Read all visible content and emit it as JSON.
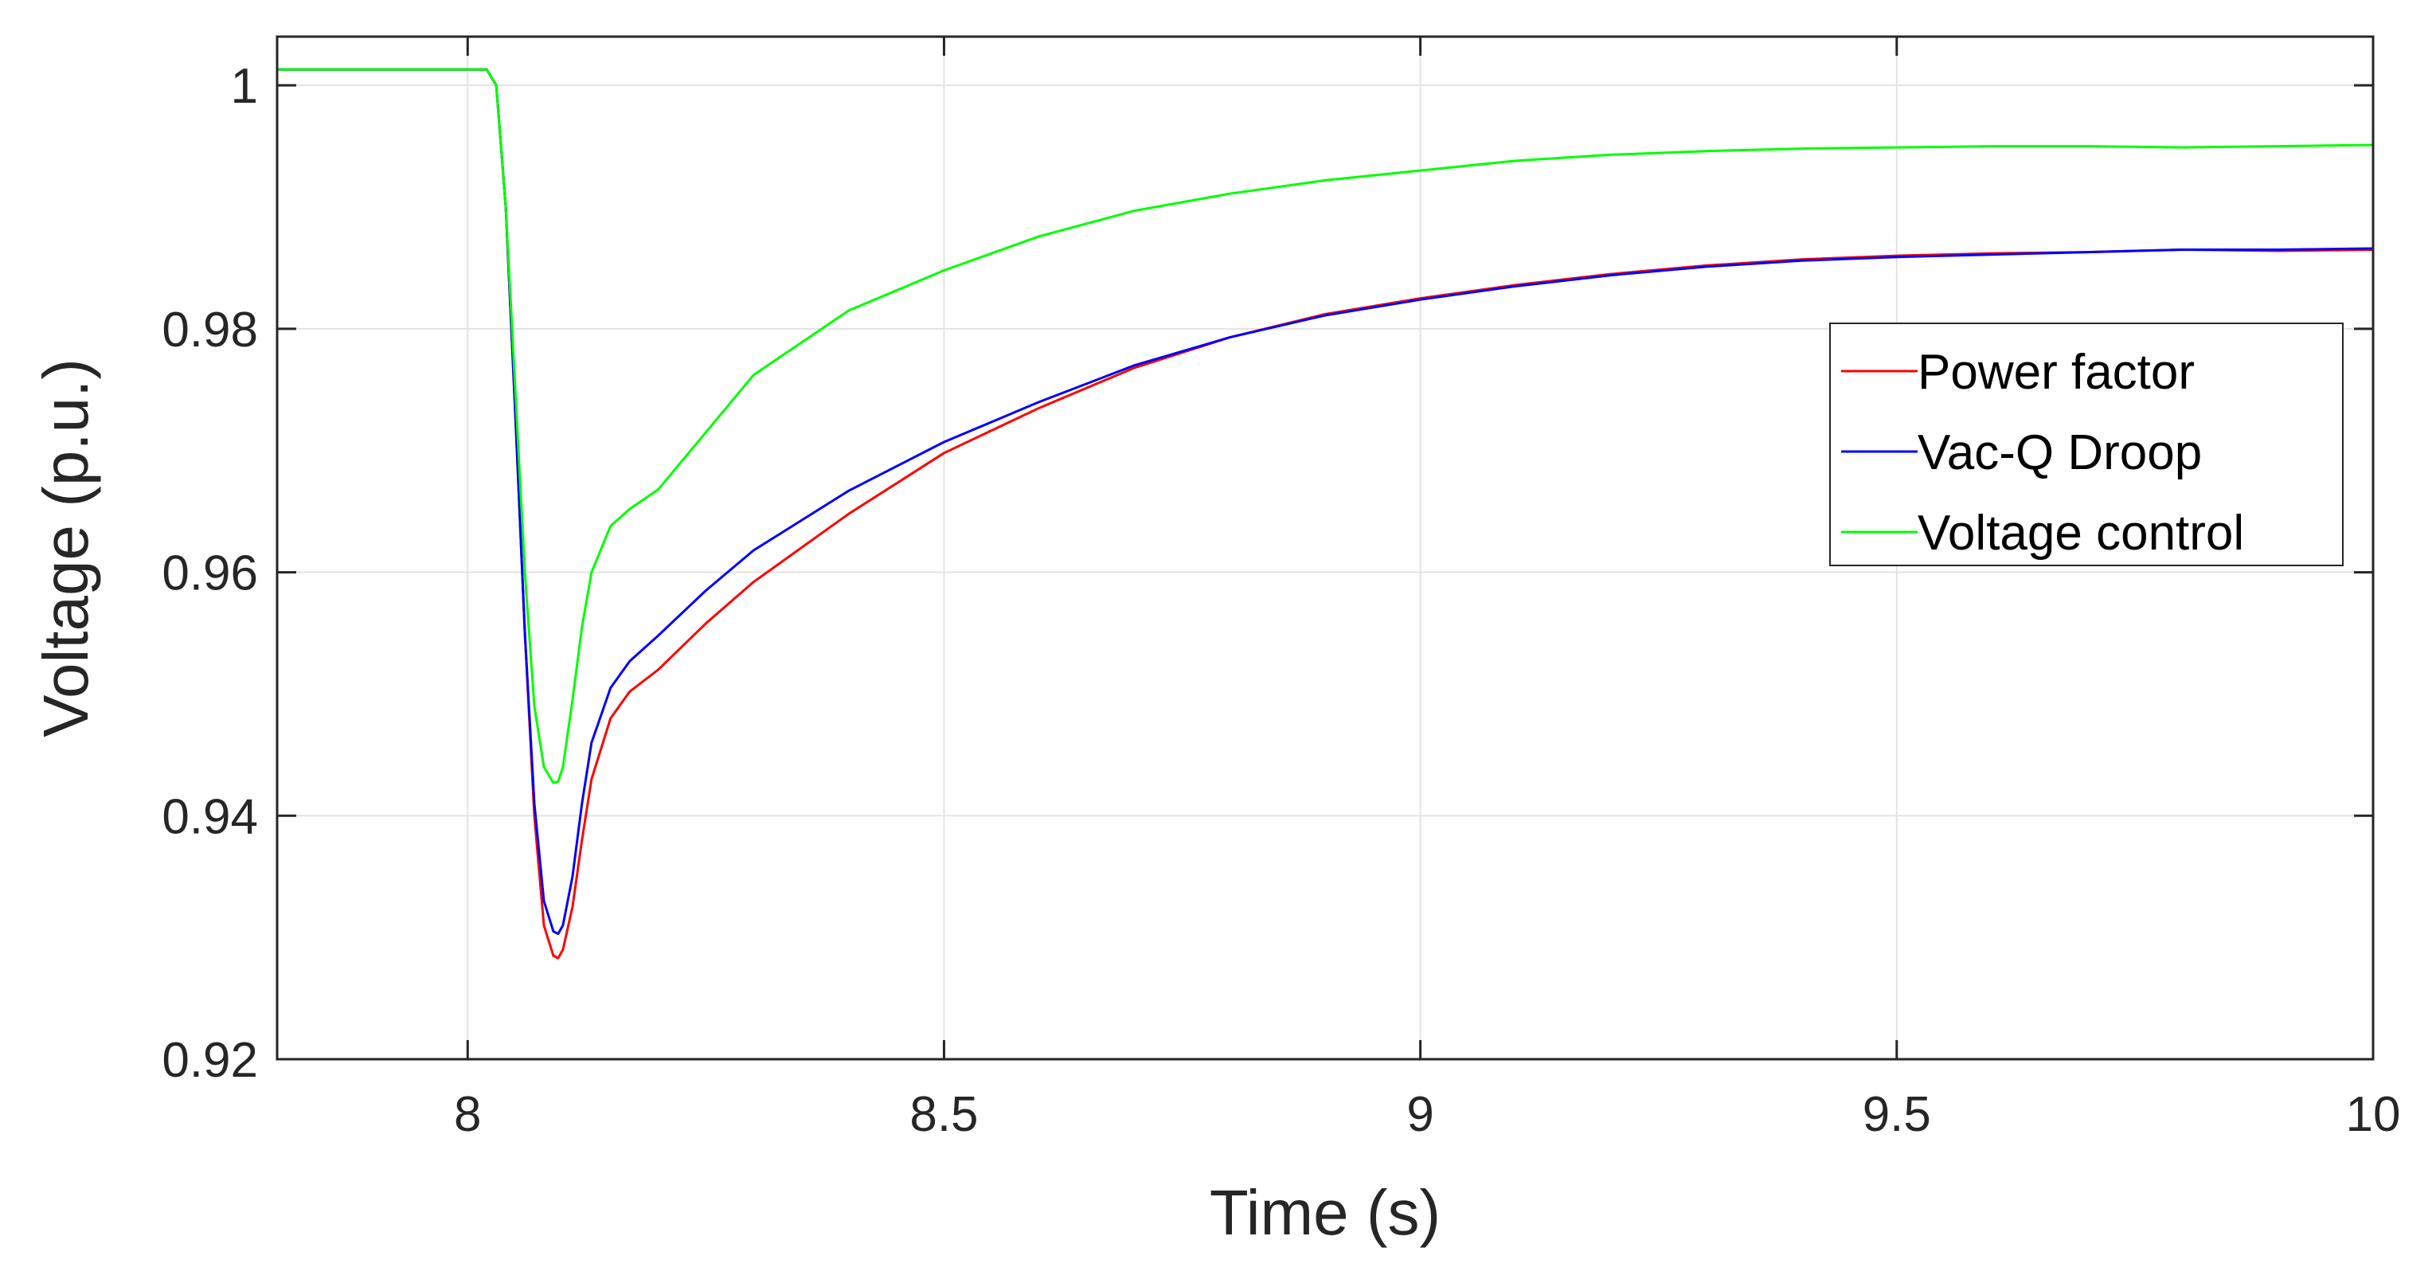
{
  "chart_data": {
    "type": "line",
    "title": "",
    "xlabel": "Time (s)",
    "ylabel": "Voltage (p.u.)",
    "xlim": [
      7.8,
      10
    ],
    "ylim": [
      0.92,
      1.004
    ],
    "xticks": [
      8,
      8.5,
      9,
      9.5,
      10
    ],
    "xtick_labels": [
      "8",
      "8.5",
      "9",
      "9.5",
      "10"
    ],
    "yticks": [
      0.92,
      0.94,
      0.96,
      0.98,
      1
    ],
    "ytick_labels": [
      "0.92",
      "0.94",
      "0.96",
      "0.98",
      "1"
    ],
    "grid": true,
    "legend_position": "right",
    "series": [
      {
        "name": "Power factor",
        "color": "#ff0000",
        "x": [
          7.8,
          8.0,
          8.02,
          8.03,
          8.04,
          8.05,
          8.06,
          8.07,
          8.08,
          8.09,
          8.095,
          8.1,
          8.11,
          8.12,
          8.13,
          8.15,
          8.17,
          8.2,
          8.25,
          8.3,
          8.4,
          8.5,
          8.6,
          8.7,
          8.8,
          8.9,
          9.0,
          9.1,
          9.2,
          9.3,
          9.4,
          9.5,
          9.6,
          9.7,
          9.8,
          9.9,
          10.0
        ],
        "y": [
          1.0013,
          1.0013,
          1.0013,
          1.0,
          0.99,
          0.973,
          0.955,
          0.94,
          0.931,
          0.9285,
          0.9283,
          0.929,
          0.9325,
          0.938,
          0.943,
          0.948,
          0.9502,
          0.952,
          0.9558,
          0.9592,
          0.9648,
          0.9698,
          0.9735,
          0.9768,
          0.9793,
          0.9812,
          0.9825,
          0.9836,
          0.9845,
          0.9852,
          0.9857,
          0.986,
          0.9862,
          0.9863,
          0.9865,
          0.9864,
          0.9865
        ]
      },
      {
        "name": "Vac-Q Droop",
        "color": "#0000ff",
        "x": [
          7.8,
          8.0,
          8.02,
          8.03,
          8.04,
          8.05,
          8.06,
          8.07,
          8.08,
          8.09,
          8.095,
          8.1,
          8.11,
          8.12,
          8.13,
          8.15,
          8.17,
          8.2,
          8.25,
          8.3,
          8.4,
          8.5,
          8.6,
          8.7,
          8.8,
          8.9,
          9.0,
          9.1,
          9.2,
          9.3,
          9.4,
          9.5,
          9.6,
          9.7,
          9.8,
          9.9,
          10.0
        ],
        "y": [
          1.0013,
          1.0013,
          1.0013,
          1.0,
          0.99,
          0.973,
          0.955,
          0.941,
          0.933,
          0.9305,
          0.9303,
          0.931,
          0.935,
          0.941,
          0.946,
          0.9505,
          0.9527,
          0.9548,
          0.9585,
          0.9618,
          0.9667,
          0.9707,
          0.974,
          0.977,
          0.9793,
          0.9811,
          0.9824,
          0.9835,
          0.9844,
          0.9851,
          0.9856,
          0.9859,
          0.9861,
          0.9863,
          0.9865,
          0.9865,
          0.9866
        ]
      },
      {
        "name": "Voltage control",
        "color": "#00ff00",
        "x": [
          7.8,
          8.0,
          8.02,
          8.03,
          8.04,
          8.05,
          8.06,
          8.07,
          8.08,
          8.09,
          8.095,
          8.1,
          8.11,
          8.12,
          8.13,
          8.15,
          8.17,
          8.2,
          8.25,
          8.3,
          8.4,
          8.5,
          8.6,
          8.7,
          8.8,
          8.9,
          9.0,
          9.1,
          9.2,
          9.3,
          9.4,
          9.5,
          9.6,
          9.7,
          9.8,
          9.9,
          10.0
        ],
        "y": [
          1.0013,
          1.0013,
          1.0013,
          1.0,
          0.99,
          0.975,
          0.96,
          0.949,
          0.944,
          0.9427,
          0.9428,
          0.944,
          0.9495,
          0.9555,
          0.96,
          0.9638,
          0.9652,
          0.9668,
          0.9715,
          0.9762,
          0.9815,
          0.9848,
          0.9876,
          0.9897,
          0.9911,
          0.9922,
          0.993,
          0.9938,
          0.9943,
          0.9946,
          0.9948,
          0.9949,
          0.995,
          0.995,
          0.9949,
          0.995,
          0.9951
        ]
      }
    ]
  }
}
